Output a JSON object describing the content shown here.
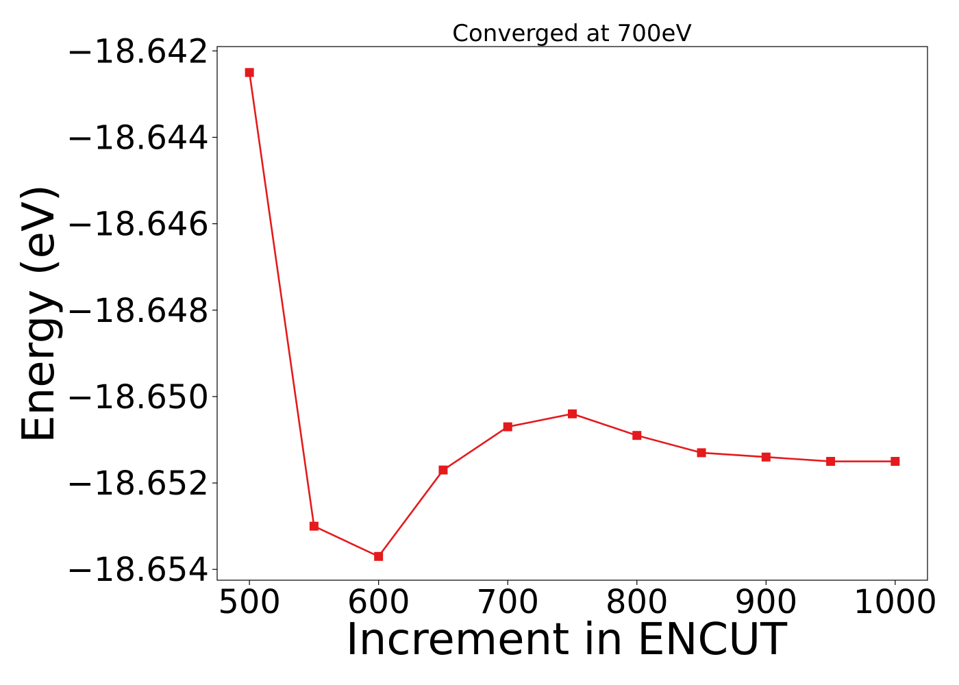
{
  "chart_data": {
    "type": "line",
    "title": "Converged at 700eV",
    "xlabel": "Increment in ENCUT",
    "ylabel": "Energy (eV)",
    "x": [
      500,
      550,
      600,
      650,
      700,
      750,
      800,
      850,
      900,
      950,
      1000
    ],
    "series": [
      {
        "values": [
          -18.6425,
          -18.653,
          -18.6537,
          -18.6517,
          -18.6507,
          -18.6504,
          -18.6509,
          -18.6513,
          -18.6514,
          -18.6515,
          -18.6515
        ],
        "color": "#e41a1c",
        "marker": "square"
      }
    ],
    "xticks": [
      500,
      600,
      700,
      800,
      900,
      1000
    ],
    "xtick_labels": [
      "500",
      "600",
      "700",
      "800",
      "900",
      "1000"
    ],
    "yticks": [
      -18.642,
      -18.644,
      -18.646,
      -18.648,
      -18.65,
      -18.652,
      -18.654
    ],
    "ytick_labels": [
      "−18.642",
      "−18.644",
      "−18.646",
      "−18.648",
      "−18.650",
      "−18.652",
      "−18.654"
    ],
    "xlim": [
      475,
      1025
    ],
    "ylim": [
      -18.65425,
      -18.6419
    ],
    "grid": false,
    "legend": "none"
  }
}
